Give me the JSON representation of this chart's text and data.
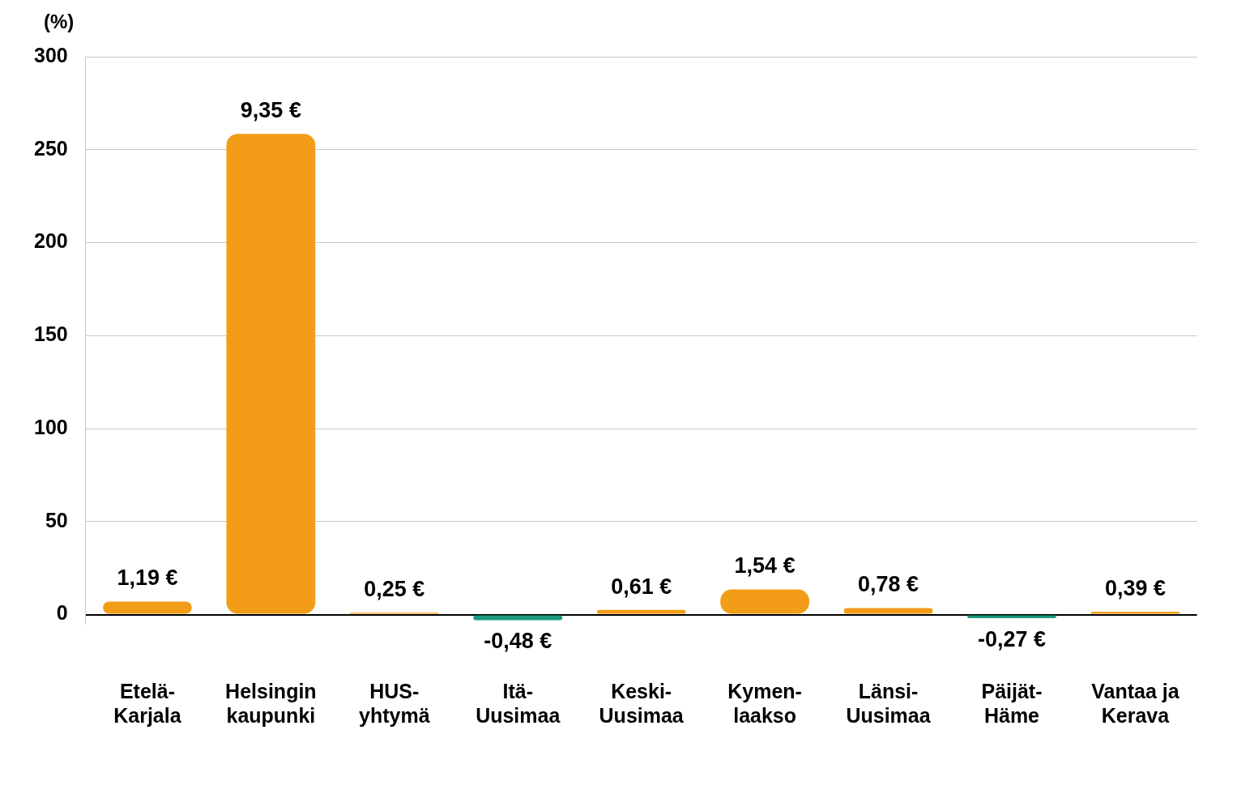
{
  "chart_data": {
    "type": "bar",
    "ylabel": "(%)",
    "categories": [
      "Etelä-Karjala",
      "Helsingin kaupunki",
      "HUS-yhtymä",
      "Itä-Uusimaa",
      "Keski-Uusimaa",
      "Kymen-laakso",
      "Länsi-Uusimaa",
      "Päijät-Häme",
      "Vantaa ja Kerava"
    ],
    "values": [
      7,
      258.5,
      1,
      -3,
      2.5,
      13.5,
      3.5,
      -2,
      1.5
    ],
    "colors": [
      "#f39c17",
      "#f39c17",
      "#f39c17",
      "#1b9a80",
      "#f39c17",
      "#f39c17",
      "#f39c17",
      "#1b9a80",
      "#f39c17"
    ],
    "annotations": [
      {
        "text": "1,19 €",
        "x": "Etelä-Karjala",
        "y": 7
      },
      {
        "text": "9,35 €",
        "x": "Helsingin kaupunki",
        "y": 258.5
      },
      {
        "text": "0,25 €",
        "x": "HUS-yhtymä",
        "y": 1
      },
      {
        "text": "-0,48 €",
        "x": "Itä-Uusimaa",
        "y": -3
      },
      {
        "text": "0,61 €",
        "x": "Keski-Uusimaa",
        "y": 2.5
      },
      {
        "text": "1,54 €",
        "x": "Kymen-laakso",
        "y": 13.5
      },
      {
        "text": "0,78 €",
        "x": "Länsi-Uusimaa",
        "y": 3.5
      },
      {
        "text": "-0,27 €",
        "x": "Päijät-Häme",
        "y": -2
      },
      {
        "text": "0,39 €",
        "x": "Vantaa ja Kerava",
        "y": 1.5
      }
    ],
    "ylim": [
      -5,
      300
    ],
    "yticks": [
      0,
      50,
      100,
      150,
      200,
      250,
      300
    ],
    "grid": "y",
    "legend": false
  }
}
